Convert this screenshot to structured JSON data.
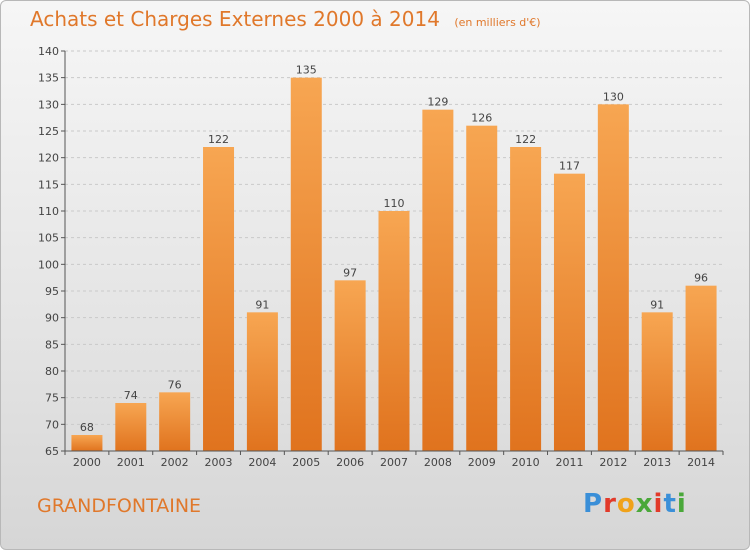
{
  "header": {
    "title": "Achats et Charges Externes 2000 à 2014",
    "unit_note": "(en milliers d'€)"
  },
  "footer": {
    "location": "GRANDFONTAINE",
    "brand": "Proxiti",
    "brand_colors": [
      "#3a8fd8",
      "#e23a2a",
      "#f0a21a",
      "#4aa83a",
      "#e23a2a",
      "#3a8fd8",
      "#4aa83a"
    ]
  },
  "colors": {
    "bar_top": "#f7a652",
    "bar_bottom": "#e0731e",
    "axis": "#555555",
    "grid": "#c9c9c9",
    "accent": "#e0782b"
  },
  "chart_data": {
    "type": "bar",
    "title": "Achats et Charges Externes 2000 à 2014",
    "subtitle": "(en milliers d'€)",
    "xlabel": "",
    "ylabel": "",
    "categories": [
      "2000",
      "2001",
      "2002",
      "2003",
      "2004",
      "2005",
      "2006",
      "2007",
      "2008",
      "2009",
      "2010",
      "2011",
      "2012",
      "2013",
      "2014"
    ],
    "values": [
      68,
      74,
      76,
      122,
      91,
      135,
      97,
      110,
      129,
      126,
      122,
      117,
      130,
      91,
      96
    ],
    "ylim": [
      65,
      140
    ],
    "yticks": [
      65,
      70,
      75,
      80,
      85,
      90,
      95,
      100,
      105,
      110,
      115,
      120,
      125,
      130,
      135,
      140
    ],
    "grid": true,
    "data_labels": true
  }
}
